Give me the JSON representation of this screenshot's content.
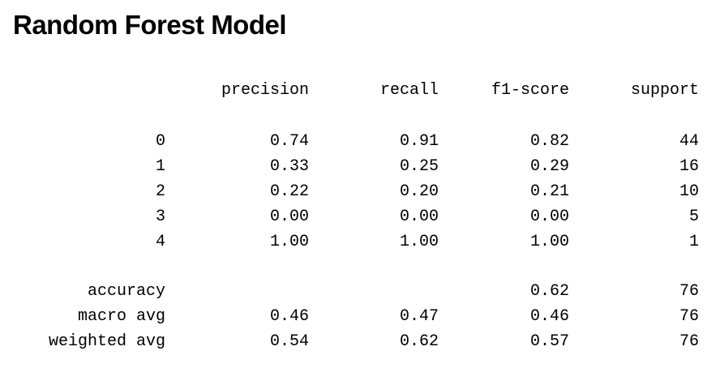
{
  "title": "Random Forest Model",
  "report": {
    "headers": {
      "precision": "precision",
      "recall": "recall",
      "f1": "f1-score",
      "support": "support"
    },
    "classes": [
      {
        "label": "0",
        "precision": "0.74",
        "recall": "0.91",
        "f1": "0.82",
        "support": "44"
      },
      {
        "label": "1",
        "precision": "0.33",
        "recall": "0.25",
        "f1": "0.29",
        "support": "16"
      },
      {
        "label": "2",
        "precision": "0.22",
        "recall": "0.20",
        "f1": "0.21",
        "support": "10"
      },
      {
        "label": "3",
        "precision": "0.00",
        "recall": "0.00",
        "f1": "0.00",
        "support": "5"
      },
      {
        "label": "4",
        "precision": "1.00",
        "recall": "1.00",
        "f1": "1.00",
        "support": "1"
      }
    ],
    "accuracy": {
      "label": "accuracy",
      "f1": "0.62",
      "support": "76"
    },
    "macro_avg": {
      "label": "macro avg",
      "precision": "0.46",
      "recall": "0.47",
      "f1": "0.46",
      "support": "76"
    },
    "weighted_avg": {
      "label": "weighted avg",
      "precision": "0.54",
      "recall": "0.62",
      "f1": "0.57",
      "support": "76"
    }
  }
}
